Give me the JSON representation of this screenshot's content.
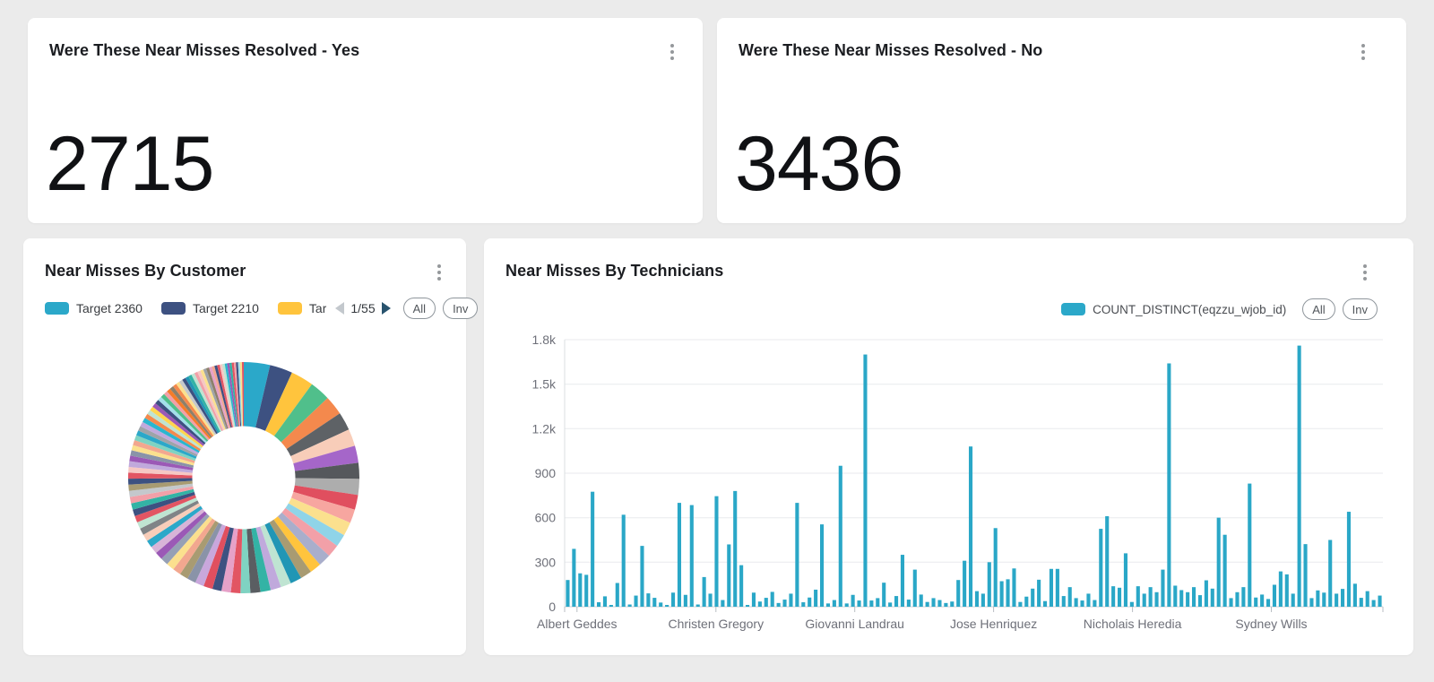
{
  "page": {
    "background": "#ebebeb"
  },
  "cards": {
    "yes": {
      "title": "Were These Near Misses Resolved - Yes",
      "value": "2715",
      "menu_icon": "kebab-menu"
    },
    "no": {
      "title": "Were These Near Misses Resolved - No",
      "value": "3436",
      "menu_icon": "kebab-menu"
    },
    "customer": {
      "title": "Near Misses By Customer",
      "legend": [
        {
          "label": "Target 2360",
          "color": "#2ba8c9"
        },
        {
          "label": "Target 2210",
          "color": "#3d5181"
        },
        {
          "label": "Tar",
          "color": "#ffc43d"
        }
      ],
      "pager": {
        "page": "1/55",
        "prev_icon": "chevron-left",
        "next_icon": "chevron-right"
      },
      "all_button": "All",
      "inv_button": "Inv"
    },
    "technicians": {
      "title": "Near Misses By Technicians",
      "legend": [
        {
          "label": "COUNT_DISTINCT(eqzzu_wjob_id)",
          "color": "#2ba8c9"
        }
      ],
      "all_button": "All",
      "inv_button": "Inv"
    }
  },
  "chart_data": [
    {
      "type": "pie",
      "title": "Near Misses By Customer",
      "donut": true,
      "legend_position": "top",
      "legend_pages": "1/55",
      "visible_legend_entries": [
        "Target 2360",
        "Target 2210",
        "Tar"
      ],
      "slices": {
        "colors": [
          "#2ba8c9",
          "#3d5181",
          "#ffc43d",
          "#50bf8b",
          "#f4894d",
          "#5e6266",
          "#f8cdb9",
          "#a566c9",
          "#55585c",
          "#adadad",
          "#e04f5f",
          "#f7a6a0",
          "#fbe08e",
          "#8fd4e8",
          "#f2a0a8",
          "#a9aecb",
          "#ffc43d",
          "#a89b72",
          "#2196b5",
          "#bfe4d2",
          "#c0a9dc",
          "#33b3a5",
          "#5a5e62",
          "#7fd3c2",
          "#e25563",
          "#e6a1c8",
          "#3d5181",
          "#e04f5f",
          "#c9a7dc",
          "#8a93a8",
          "#a89b72",
          "#f2a78f",
          "#fbe08e",
          "#96a0b5",
          "#9b59b6",
          "#d8b4d8",
          "#2ba8c9",
          "#f8cdb9",
          "#808487",
          "#bfe4d2",
          "#e25563",
          "#3d5181",
          "#33b3a5",
          "#f2a0a8",
          "#c4c8cc",
          "#a89b72",
          "#3d5181",
          "#e25563",
          "#f6c8c4",
          "#c0a9dc",
          "#9b59b6",
          "#8a93a8",
          "#fbe08e",
          "#f2a78f",
          "#7fd3c2",
          "#2ba8c9",
          "#9ea3a8",
          "#c0a9dc",
          "#29b6cf",
          "#f4894d",
          "#bfe4d2",
          "#ffd54f",
          "#9b59b6",
          "#3d5181",
          "#a3e0ea",
          "#50bf8b",
          "#f2a0a8",
          "#f57c2a",
          "#8d806b",
          "#f4894d",
          "#fbe08e",
          "#c4c8cc",
          "#3d5181",
          "#2196b5",
          "#33b3a5",
          "#bfe4d2",
          "#f2a0a8",
          "#f6c8c4",
          "#fbe08e",
          "#9ea3a8",
          "#8d806b",
          "#e6a1c8",
          "#f2a78f",
          "#3d5181",
          "#e25563",
          "#f6c8c4",
          "#bfe4d2",
          "#29b6cf",
          "#9b59b6",
          "#33b3a5",
          "#e25563",
          "#f2a0a8",
          "#3d5181",
          "#a3e0ea",
          "#fbe08e",
          "#e25563"
        ],
        "values": [
          11.5,
          10,
          10,
          9,
          8.5,
          8,
          7.5,
          7.5,
          7,
          7,
          6.5,
          6,
          6,
          5.5,
          5.5,
          5.5,
          5,
          5,
          5,
          4.6,
          4.6,
          4.5,
          4.4,
          4.3,
          4.2,
          4.1,
          4,
          4,
          3.9,
          3.8,
          3.7,
          3.6,
          3.5,
          3.4,
          3.4,
          3.3,
          3.2,
          3.1,
          3,
          3,
          2.9,
          2.9,
          2.8,
          2.8,
          2.7,
          2.7,
          2.6,
          2.6,
          2.5,
          2.5,
          2.4,
          2.4,
          2.3,
          2.3,
          2.2,
          2.2,
          2.1,
          2.1,
          2,
          2,
          2,
          1.9,
          1.9,
          1.85,
          1.8,
          1.8,
          1.75,
          1.7,
          1.7,
          1.65,
          1.6,
          1.6,
          1.55,
          1.5,
          1.5,
          1.45,
          1.4,
          1.4,
          1.35,
          1.3,
          1.3,
          1.25,
          1.2,
          1.2,
          1.15,
          1.1,
          1.1,
          1.05,
          1,
          1,
          0.95,
          0.9,
          0.9,
          0.85,
          0.85,
          0.8
        ]
      }
    },
    {
      "type": "bar",
      "title": "Near Misses By Technicians",
      "series_name": "COUNT_DISTINCT(eqzzu_wjob_id)",
      "bar_color": "#2aa7c7",
      "grid": true,
      "legend_position": "top-right",
      "ylim": [
        0,
        1800
      ],
      "yticks": [
        0,
        300,
        600,
        900,
        1200,
        1500,
        1800
      ],
      "ytick_labels": [
        "0",
        "300",
        "600",
        "900",
        "1.2k",
        "1.5k",
        "1.8k"
      ],
      "xtick_labels": [
        "Albert Geddes",
        "Christen Gregory",
        "Giovanni Landrau",
        "Jose Henriquez",
        "Nicholais Heredia",
        "Sydney Wills"
      ],
      "xtick_positions": [
        1.5,
        23.9,
        46.3,
        68.7,
        91.1,
        113.5
      ],
      "values": [
        180,
        390,
        225,
        215,
        775,
        30,
        70,
        12,
        160,
        620,
        15,
        75,
        410,
        90,
        60,
        28,
        12,
        95,
        700,
        80,
        685,
        15,
        200,
        88,
        745,
        45,
        420,
        780,
        280,
        12,
        95,
        35,
        60,
        100,
        25,
        48,
        88,
        700,
        30,
        62,
        115,
        555,
        22,
        45,
        950,
        22,
        80,
        42,
        1700,
        42,
        58,
        162,
        28,
        72,
        350,
        48,
        250,
        82,
        32,
        58,
        45,
        25,
        35,
        180,
        310,
        1080,
        105,
        88,
        300,
        530,
        172,
        185,
        258,
        32,
        68,
        122,
        182,
        38,
        255,
        255,
        72,
        132,
        58,
        42,
        88,
        45,
        525,
        610,
        138,
        128,
        360,
        32,
        138,
        88,
        132,
        98,
        250,
        1640,
        142,
        112,
        98,
        132,
        78,
        178,
        122,
        600,
        485,
        58,
        98,
        132,
        830,
        62,
        82,
        52,
        148,
        238,
        218,
        88,
        1760,
        422,
        58,
        110,
        95,
        450,
        88,
        120,
        640,
        155,
        60,
        105,
        45,
        75
      ]
    }
  ]
}
